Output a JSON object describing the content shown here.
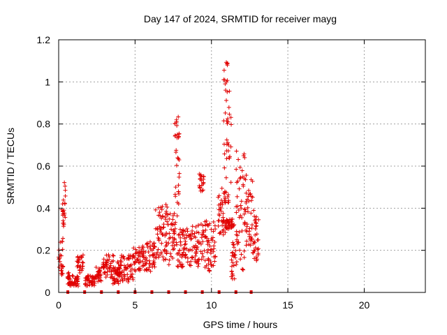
{
  "chart_data": {
    "type": "scatter",
    "title": "Day 147 of 2024, SRMTID for receiver mayg",
    "xlabel": "GPS time / hours",
    "ylabel": "SRMTID / TECUs",
    "xlim": [
      0,
      24
    ],
    "ylim": [
      0,
      1.2
    ],
    "xticks": [
      0,
      5,
      10,
      15,
      20
    ],
    "yticks": [
      0,
      0.2,
      0.4,
      0.6,
      0.8,
      1,
      1.2
    ],
    "ytick_labels": [
      "0",
      "0.2",
      "0.4",
      "0.6",
      "0.8",
      "1",
      "1.2"
    ],
    "grid": true,
    "marker": "plus",
    "color": "#e00000",
    "series": [
      {
        "name": "SRMTID",
        "clusters": [
          {
            "x": [
              0.0,
              0.3
            ],
            "y": [
              0.07,
              0.26
            ]
          },
          {
            "x": [
              0.2,
              0.45
            ],
            "y": [
              0.3,
              0.53
            ]
          },
          {
            "x": [
              0.5,
              0.8
            ],
            "y": [
              0.03,
              0.1
            ]
          },
          {
            "x": [
              0.8,
              1.3
            ],
            "y": [
              0.03,
              0.08
            ]
          },
          {
            "x": [
              1.2,
              1.6
            ],
            "y": [
              0.09,
              0.18
            ]
          },
          {
            "x": [
              1.7,
              2.4
            ],
            "y": [
              0.03,
              0.08
            ]
          },
          {
            "x": [
              2.4,
              2.8
            ],
            "y": [
              0.05,
              0.12
            ]
          },
          {
            "x": [
              2.9,
              3.6
            ],
            "y": [
              0.07,
              0.18
            ]
          },
          {
            "x": [
              3.5,
              4.0
            ],
            "y": [
              0.04,
              0.12
            ]
          },
          {
            "x": [
              3.8,
              4.9
            ],
            "y": [
              0.05,
              0.18
            ]
          },
          {
            "x": [
              4.9,
              5.6
            ],
            "y": [
              0.1,
              0.22
            ]
          },
          {
            "x": [
              5.6,
              6.3
            ],
            "y": [
              0.1,
              0.24
            ]
          },
          {
            "x": [
              6.3,
              7.1
            ],
            "y": [
              0.15,
              0.42
            ]
          },
          {
            "x": [
              7.0,
              7.6
            ],
            "y": [
              0.13,
              0.38
            ]
          },
          {
            "x": [
              7.6,
              7.9
            ],
            "y": [
              0.28,
              0.86
            ]
          },
          {
            "x": [
              7.7,
              8.2
            ],
            "y": [
              0.12,
              0.3
            ]
          },
          {
            "x": [
              8.2,
              9.2
            ],
            "y": [
              0.12,
              0.32
            ]
          },
          {
            "x": [
              9.2,
              9.5
            ],
            "y": [
              0.48,
              0.57
            ]
          },
          {
            "x": [
              9.3,
              10.3
            ],
            "y": [
              0.1,
              0.34
            ]
          },
          {
            "x": [
              10.4,
              10.9
            ],
            "y": [
              0.27,
              0.5
            ]
          },
          {
            "x": [
              10.8,
              11.3
            ],
            "y": [
              0.4,
              1.11
            ]
          },
          {
            "x": [
              10.9,
              11.5
            ],
            "y": [
              0.3,
              0.35
            ]
          },
          {
            "x": [
              11.3,
              11.6
            ],
            "y": [
              0.06,
              0.25
            ]
          },
          {
            "x": [
              11.6,
              12.2
            ],
            "y": [
              0.1,
              0.68
            ]
          },
          {
            "x": [
              12.2,
              12.7
            ],
            "y": [
              0.22,
              0.56
            ]
          },
          {
            "x": [
              12.7,
              13.1
            ],
            "y": [
              0.15,
              0.4
            ]
          }
        ]
      }
    ],
    "zero_line_markers_x": [
      0.6,
      1.7,
      2.8,
      3.9,
      5.0,
      6.1,
      7.2,
      8.3,
      9.4,
      10.5,
      11.6,
      12.6
    ]
  }
}
